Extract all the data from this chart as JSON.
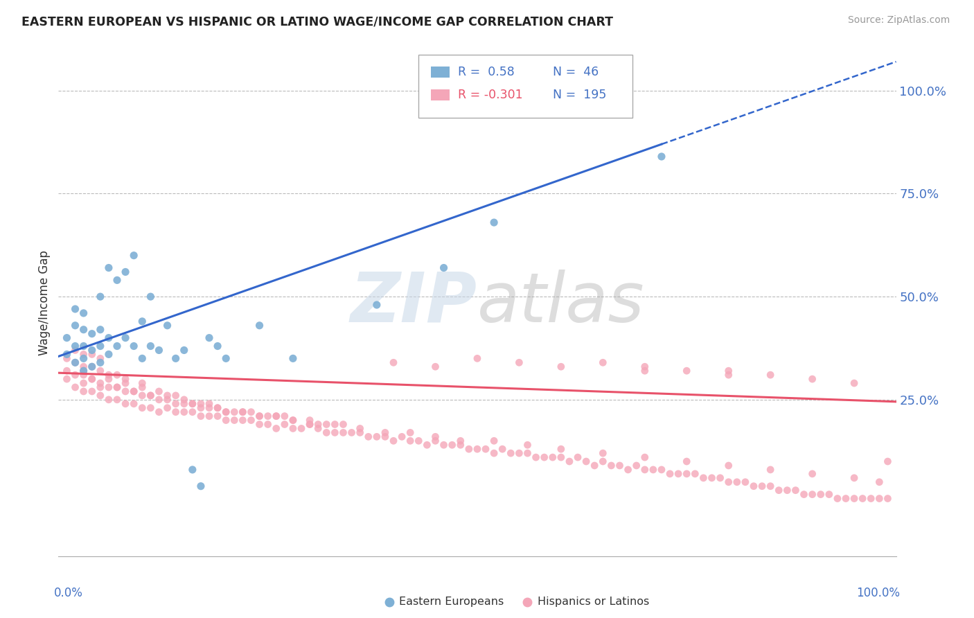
{
  "title": "EASTERN EUROPEAN VS HISPANIC OR LATINO WAGE/INCOME GAP CORRELATION CHART",
  "source": "Source: ZipAtlas.com",
  "ylabel": "Wage/Income Gap",
  "xlim": [
    0.0,
    1.0
  ],
  "ylim": [
    -0.13,
    1.1
  ],
  "blue_R": 0.58,
  "blue_N": 46,
  "pink_R": -0.301,
  "pink_N": 195,
  "blue_color": "#7EB0D5",
  "pink_color": "#F4A6B8",
  "blue_line_color": "#3366CC",
  "pink_line_color": "#E8526A",
  "grid_color": "#BBBBBB",
  "ytick_positions": [
    0.25,
    0.5,
    0.75,
    1.0
  ],
  "blue_line_x0": 0.0,
  "blue_line_y0": 0.355,
  "blue_line_x1": 0.72,
  "blue_line_y1": 0.87,
  "pink_line_x0": 0.0,
  "pink_line_y0": 0.315,
  "pink_line_x1": 1.0,
  "pink_line_y1": 0.245,
  "blue_scatter_x": [
    0.01,
    0.01,
    0.02,
    0.02,
    0.02,
    0.02,
    0.03,
    0.03,
    0.03,
    0.03,
    0.03,
    0.04,
    0.04,
    0.04,
    0.05,
    0.05,
    0.05,
    0.05,
    0.06,
    0.06,
    0.06,
    0.07,
    0.07,
    0.08,
    0.08,
    0.09,
    0.09,
    0.1,
    0.1,
    0.11,
    0.11,
    0.12,
    0.13,
    0.14,
    0.15,
    0.16,
    0.17,
    0.18,
    0.19,
    0.2,
    0.24,
    0.28,
    0.38,
    0.46,
    0.52,
    0.72
  ],
  "blue_scatter_y": [
    0.36,
    0.4,
    0.34,
    0.38,
    0.43,
    0.47,
    0.32,
    0.35,
    0.38,
    0.42,
    0.46,
    0.33,
    0.37,
    0.41,
    0.34,
    0.38,
    0.42,
    0.5,
    0.36,
    0.4,
    0.57,
    0.38,
    0.54,
    0.4,
    0.56,
    0.38,
    0.6,
    0.35,
    0.44,
    0.38,
    0.5,
    0.37,
    0.43,
    0.35,
    0.37,
    0.08,
    0.04,
    0.4,
    0.38,
    0.35,
    0.43,
    0.35,
    0.48,
    0.57,
    0.68,
    0.84
  ],
  "pink_scatter_x": [
    0.01,
    0.01,
    0.01,
    0.02,
    0.02,
    0.02,
    0.02,
    0.03,
    0.03,
    0.03,
    0.03,
    0.03,
    0.04,
    0.04,
    0.04,
    0.04,
    0.05,
    0.05,
    0.05,
    0.05,
    0.06,
    0.06,
    0.06,
    0.07,
    0.07,
    0.07,
    0.08,
    0.08,
    0.08,
    0.09,
    0.09,
    0.1,
    0.1,
    0.1,
    0.11,
    0.11,
    0.12,
    0.12,
    0.13,
    0.13,
    0.14,
    0.14,
    0.15,
    0.15,
    0.16,
    0.16,
    0.17,
    0.17,
    0.18,
    0.18,
    0.19,
    0.19,
    0.2,
    0.2,
    0.21,
    0.21,
    0.22,
    0.22,
    0.23,
    0.23,
    0.24,
    0.24,
    0.25,
    0.25,
    0.26,
    0.26,
    0.27,
    0.27,
    0.28,
    0.28,
    0.29,
    0.3,
    0.3,
    0.31,
    0.31,
    0.32,
    0.32,
    0.33,
    0.34,
    0.34,
    0.35,
    0.36,
    0.37,
    0.38,
    0.39,
    0.4,
    0.41,
    0.42,
    0.43,
    0.44,
    0.45,
    0.46,
    0.47,
    0.48,
    0.49,
    0.5,
    0.51,
    0.52,
    0.53,
    0.54,
    0.55,
    0.56,
    0.57,
    0.58,
    0.59,
    0.6,
    0.61,
    0.62,
    0.63,
    0.64,
    0.65,
    0.66,
    0.67,
    0.68,
    0.69,
    0.7,
    0.71,
    0.72,
    0.73,
    0.74,
    0.75,
    0.76,
    0.77,
    0.78,
    0.79,
    0.8,
    0.81,
    0.82,
    0.83,
    0.84,
    0.85,
    0.86,
    0.87,
    0.88,
    0.89,
    0.9,
    0.91,
    0.92,
    0.93,
    0.94,
    0.95,
    0.96,
    0.97,
    0.98,
    0.99,
    0.03,
    0.04,
    0.05,
    0.06,
    0.07,
    0.08,
    0.09,
    0.1,
    0.11,
    0.12,
    0.13,
    0.14,
    0.15,
    0.16,
    0.17,
    0.18,
    0.19,
    0.2,
    0.22,
    0.24,
    0.26,
    0.28,
    0.3,
    0.33,
    0.36,
    0.39,
    0.42,
    0.45,
    0.48,
    0.52,
    0.56,
    0.6,
    0.65,
    0.7,
    0.75,
    0.8,
    0.85,
    0.9,
    0.95,
    0.4,
    0.45,
    0.5,
    0.55,
    0.6,
    0.65,
    0.7,
    0.75,
    0.8,
    0.85,
    0.9,
    0.95,
    0.99,
    0.7,
    0.8,
    0.98
  ],
  "pink_scatter_y": [
    0.3,
    0.32,
    0.35,
    0.28,
    0.31,
    0.34,
    0.37,
    0.27,
    0.29,
    0.31,
    0.33,
    0.36,
    0.27,
    0.3,
    0.33,
    0.36,
    0.26,
    0.29,
    0.32,
    0.35,
    0.25,
    0.28,
    0.31,
    0.25,
    0.28,
    0.31,
    0.24,
    0.27,
    0.3,
    0.24,
    0.27,
    0.23,
    0.26,
    0.29,
    0.23,
    0.26,
    0.22,
    0.25,
    0.23,
    0.26,
    0.22,
    0.24,
    0.22,
    0.24,
    0.22,
    0.24,
    0.21,
    0.23,
    0.21,
    0.24,
    0.21,
    0.23,
    0.2,
    0.22,
    0.2,
    0.22,
    0.2,
    0.22,
    0.2,
    0.22,
    0.19,
    0.21,
    0.19,
    0.21,
    0.18,
    0.21,
    0.19,
    0.21,
    0.18,
    0.2,
    0.18,
    0.19,
    0.2,
    0.18,
    0.19,
    0.17,
    0.19,
    0.17,
    0.17,
    0.19,
    0.17,
    0.17,
    0.16,
    0.16,
    0.16,
    0.15,
    0.16,
    0.15,
    0.15,
    0.14,
    0.15,
    0.14,
    0.14,
    0.14,
    0.13,
    0.13,
    0.13,
    0.12,
    0.13,
    0.12,
    0.12,
    0.12,
    0.11,
    0.11,
    0.11,
    0.11,
    0.1,
    0.11,
    0.1,
    0.09,
    0.1,
    0.09,
    0.09,
    0.08,
    0.09,
    0.08,
    0.08,
    0.08,
    0.07,
    0.07,
    0.07,
    0.07,
    0.06,
    0.06,
    0.06,
    0.05,
    0.05,
    0.05,
    0.04,
    0.04,
    0.04,
    0.03,
    0.03,
    0.03,
    0.02,
    0.02,
    0.02,
    0.02,
    0.01,
    0.01,
    0.01,
    0.01,
    0.01,
    0.01,
    0.01,
    0.32,
    0.3,
    0.28,
    0.3,
    0.28,
    0.29,
    0.27,
    0.28,
    0.26,
    0.27,
    0.25,
    0.26,
    0.25,
    0.24,
    0.24,
    0.23,
    0.23,
    0.22,
    0.22,
    0.21,
    0.21,
    0.2,
    0.19,
    0.19,
    0.18,
    0.17,
    0.17,
    0.16,
    0.15,
    0.15,
    0.14,
    0.13,
    0.12,
    0.11,
    0.1,
    0.09,
    0.08,
    0.07,
    0.06,
    0.34,
    0.33,
    0.35,
    0.34,
    0.33,
    0.34,
    0.32,
    0.32,
    0.31,
    0.31,
    0.3,
    0.29,
    0.1,
    0.33,
    0.32,
    0.05
  ]
}
